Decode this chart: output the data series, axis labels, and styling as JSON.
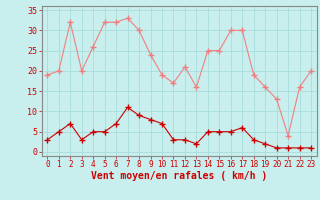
{
  "hours": [
    0,
    1,
    2,
    3,
    4,
    5,
    6,
    7,
    8,
    9,
    10,
    11,
    12,
    13,
    14,
    15,
    16,
    17,
    18,
    19,
    20,
    21,
    22,
    23
  ],
  "rafales": [
    19,
    20,
    32,
    20,
    26,
    32,
    32,
    33,
    30,
    24,
    19,
    17,
    21,
    16,
    25,
    25,
    30,
    30,
    19,
    16,
    13,
    4,
    16,
    20
  ],
  "moyen": [
    3,
    5,
    7,
    3,
    5,
    5,
    7,
    11,
    9,
    8,
    7,
    3,
    3,
    2,
    5,
    5,
    5,
    6,
    3,
    2,
    1,
    1,
    1,
    1
  ],
  "bg_color": "#c8eeee",
  "grid_color": "#aadddd",
  "line_color_rafales": "#f08080",
  "line_color_moyen": "#cc0000",
  "xlabel": "Vent moyen/en rafales ( km/h )",
  "xlabel_color": "#cc0000",
  "ylabel_color": "#cc0000",
  "ylim": [
    -1,
    36
  ],
  "yticks": [
    0,
    5,
    10,
    15,
    20,
    25,
    30,
    35
  ],
  "spine_color": "#888888"
}
